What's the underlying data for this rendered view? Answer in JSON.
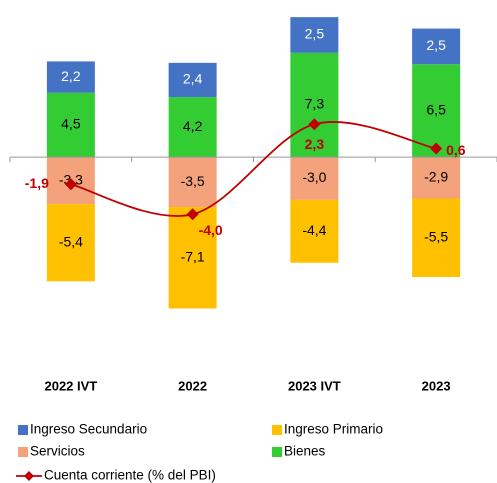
{
  "chart_data": {
    "type": "bar",
    "categories": [
      "2022 IVT",
      "2022",
      "2023 IVT",
      "2023"
    ],
    "series": [
      {
        "name": "Ingreso Secundario",
        "color": "#4472c4",
        "values": [
          2.2,
          2.4,
          2.5,
          2.5
        ],
        "value_labels": [
          "2,2",
          "2,4",
          "2,5",
          "2,5"
        ]
      },
      {
        "name": "Ingreso Primario",
        "color": "#ffc000",
        "values": [
          -5.4,
          -7.1,
          -4.4,
          -5.5
        ],
        "value_labels": [
          "-5,4",
          "-7,1",
          "-4,4",
          "-5,5"
        ]
      },
      {
        "name": "Servicios",
        "color": "#f4a27c",
        "values": [
          -3.3,
          -3.5,
          -3.0,
          -2.9
        ],
        "value_labels": [
          "-3,3",
          "-3,5",
          "-3,0",
          "-2,9"
        ]
      },
      {
        "name": "Bienes",
        "color": "#33cc33",
        "values": [
          4.5,
          4.2,
          7.3,
          6.5
        ],
        "value_labels": [
          "4,5",
          "4,2",
          "7,3",
          "6,5"
        ]
      }
    ],
    "line": {
      "name": "Cuenta corriente (% del PBI)",
      "color": "#c00000",
      "values": [
        -1.9,
        -4.0,
        2.3,
        0.6
      ],
      "value_labels": [
        "-1,9",
        "-4,0",
        "2,3",
        "0,6"
      ]
    },
    "ylim": [
      -14,
      11
    ]
  }
}
